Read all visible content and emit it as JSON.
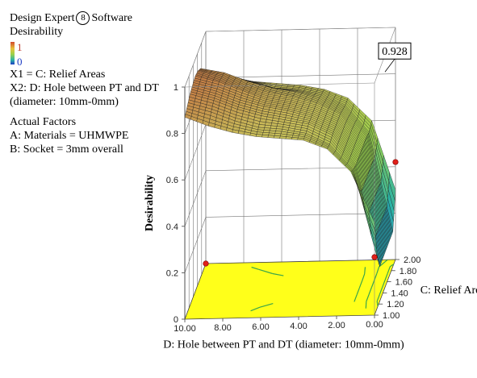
{
  "legend": {
    "brand_before": "Design Expert",
    "brand_mark": "8",
    "brand_after": "Software",
    "response": "Desirability",
    "scale_hi": "1",
    "scale_lo": "0",
    "x1": "X1 = C: Relief Areas",
    "x2_line1": "X2: D: Hole between PT and DT",
    "x2_line2": "(diameter: 10mm-0mm)",
    "actual_title": "Actual Factors",
    "factor_a": "A: Materials = UHMWPE",
    "factor_b": "B: Socket = 3mm overall"
  },
  "colors": {
    "surface_high": "#c25a3a",
    "surface_mid": "#9bd24a",
    "surface_low": "#2bb3a7",
    "floor": "#ffff1a",
    "contour": "#3aa54a",
    "design_point": "#e0201a"
  },
  "chart_data": {
    "type": "surface",
    "title": "",
    "flag_value": "0.928",
    "zlabel": "Desirability",
    "xlabel": "D: Hole between PT and DT (diameter: 10mm-0mm)",
    "ylabel": "C: Relief Areas",
    "x_range": [
      0,
      10
    ],
    "y_range": [
      1,
      2
    ],
    "z_range": [
      0,
      1
    ],
    "x_ticks": [
      "10.00",
      "8.00",
      "6.00",
      "4.00",
      "2.00",
      "0.00"
    ],
    "y_ticks": [
      "1.00",
      "1.20",
      "1.40",
      "1.60",
      "1.80",
      "2.00"
    ],
    "z_ticks": [
      "0",
      "0.2",
      "0.4",
      "0.6",
      "0.8",
      "1"
    ],
    "x_grid": [
      0,
      1.25,
      2.5,
      3.75,
      5,
      6.25,
      7.5,
      8.75,
      10
    ],
    "y_grid": [
      1,
      1.125,
      1.25,
      1.375,
      1.5,
      1.625,
      1.75,
      1.875,
      2
    ],
    "z_grid": [
      [
        0.4,
        0.62,
        0.72,
        0.76,
        0.77,
        0.78,
        0.8,
        0.83,
        0.87
      ],
      [
        0.22,
        0.6,
        0.71,
        0.76,
        0.78,
        0.79,
        0.82,
        0.86,
        0.89
      ],
      [
        0.15,
        0.59,
        0.72,
        0.77,
        0.79,
        0.81,
        0.84,
        0.88,
        0.91
      ],
      [
        0.15,
        0.59,
        0.72,
        0.77,
        0.8,
        0.82,
        0.85,
        0.89,
        0.92
      ],
      [
        0.15,
        0.59,
        0.72,
        0.77,
        0.8,
        0.82,
        0.86,
        0.9,
        0.928
      ],
      [
        0.15,
        0.59,
        0.72,
        0.77,
        0.8,
        0.82,
        0.85,
        0.89,
        0.92
      ],
      [
        0.15,
        0.59,
        0.71,
        0.76,
        0.79,
        0.81,
        0.84,
        0.88,
        0.9
      ],
      [
        0.15,
        0.58,
        0.7,
        0.75,
        0.77,
        0.78,
        0.81,
        0.84,
        0.86
      ],
      [
        0.3,
        0.6,
        0.7,
        0.74,
        0.76,
        0.77,
        0.78,
        0.8,
        0.83
      ]
    ],
    "design_points": [
      {
        "x": 10,
        "y": 2,
        "z": 0
      },
      {
        "x": 0,
        "y": 1,
        "z": 0.25
      },
      {
        "x": 0,
        "y": 2,
        "z": 0.42
      }
    ]
  }
}
